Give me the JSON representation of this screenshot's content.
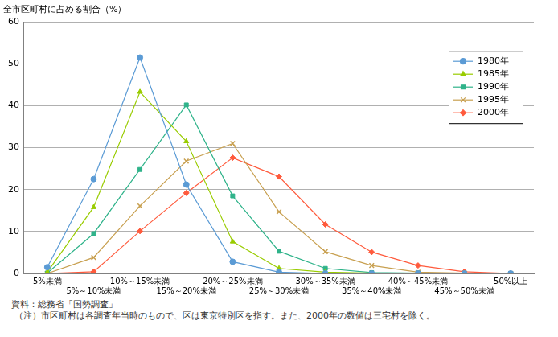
{
  "chart_data": {
    "type": "line",
    "y_label": "全市区町村に占める割合（%）",
    "categories": [
      "5%未満",
      "5%～10%未満",
      "10%～15%未満",
      "15%～20%未満",
      "20%～25%未満",
      "25%～30%未満",
      "30%～35%未満",
      "35%～40%未満",
      "40%～45%未満",
      "45%～50%未満",
      "50%以上"
    ],
    "series": [
      {
        "name": "1980年",
        "color": "#5b9bd5",
        "marker": "circle",
        "values": [
          1.5,
          22.5,
          51.5,
          21.2,
          2.8,
          0.3,
          0,
          0,
          0,
          0,
          0
        ]
      },
      {
        "name": "1985年",
        "color": "#99cc00",
        "marker": "triangle",
        "values": [
          0.3,
          15.8,
          43.3,
          31.5,
          7.6,
          1.2,
          0.3,
          0.1,
          0,
          0,
          0
        ]
      },
      {
        "name": "1990年",
        "color": "#2fb38a",
        "marker": "square",
        "values": [
          0.1,
          9.5,
          24.8,
          40.2,
          18.5,
          5.3,
          1.2,
          0.2,
          0.1,
          0,
          0
        ]
      },
      {
        "name": "1995年",
        "color": "#c8a050",
        "marker": "x",
        "values": [
          0,
          3.8,
          16.1,
          26.8,
          31.0,
          14.7,
          5.2,
          1.9,
          0.3,
          0.1,
          0
        ]
      },
      {
        "name": "2000年",
        "color": "#ff5a3c",
        "marker": "diamond",
        "values": [
          0,
          0.4,
          10.1,
          19.2,
          27.6,
          23.1,
          11.7,
          5.1,
          1.9,
          0.4,
          0
        ]
      }
    ],
    "ylim": [
      0,
      60
    ],
    "yticks": [
      0,
      10,
      20,
      30,
      40,
      50,
      60
    ],
    "grid": true,
    "legend": "upper right",
    "notes": [
      "資料：総務省「国勢調査」",
      "（注）市区町村は各調査年当時のもので、区は東京特別区を指す。また、2000年の数値は三宅村を除く。"
    ]
  }
}
